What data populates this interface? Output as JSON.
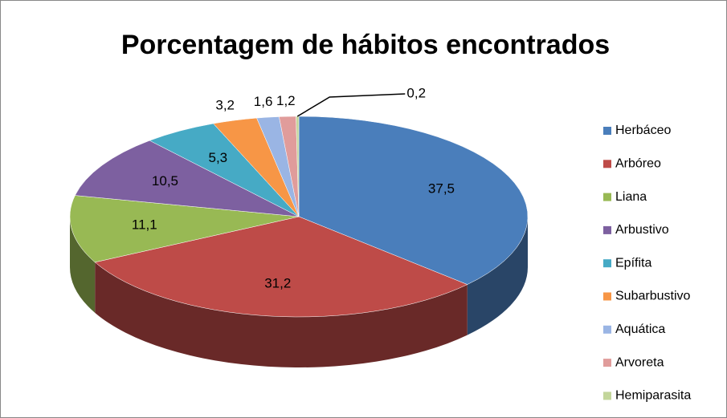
{
  "chart_data": {
    "type": "pie3d",
    "title": "Porcentagem de hábitos encontrados",
    "categories": [
      "Herbáceo",
      "Arbóreo",
      "Liana",
      "Arbustivo",
      "Epífita",
      "Subarbustivo",
      "Aquática",
      "Arvoreta",
      "Hemiparasita"
    ],
    "values": [
      37.5,
      31.2,
      11.1,
      10.5,
      5.3,
      3.2,
      1.6,
      1.2,
      0.2
    ],
    "value_labels": [
      "37,5",
      "31,2",
      "11,1",
      "10,5",
      "5,3",
      "3,2",
      "1,6",
      "1,2",
      "0,2"
    ],
    "colors": [
      "#4a7ebb",
      "#be4b48",
      "#98b954",
      "#7d60a0",
      "#46aac5",
      "#f79646",
      "#9ab5e4",
      "#e09c9b",
      "#c3d69b"
    ],
    "legend": "right"
  }
}
